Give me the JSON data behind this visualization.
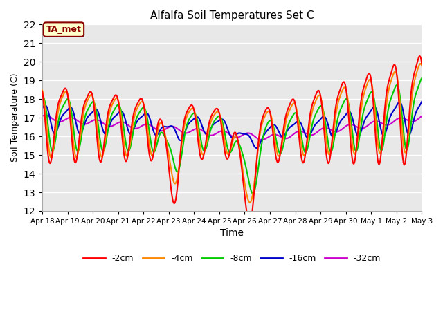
{
  "title": "Alfalfa Soil Temperatures Set C",
  "xlabel": "Time",
  "ylabel": "Soil Temperature (C)",
  "ylim": [
    12.0,
    22.0
  ],
  "yticks": [
    12.0,
    13.0,
    14.0,
    15.0,
    16.0,
    17.0,
    18.0,
    19.0,
    20.0,
    21.0,
    22.0
  ],
  "plot_bg": "#e8e8e8",
  "fig_bg": "#ffffff",
  "annotation_text": "TA_met",
  "annotation_bg": "#ffffcc",
  "annotation_border": "#8B0000",
  "series": {
    "-2cm": {
      "color": "#ff0000",
      "lw": 1.5
    },
    "-4cm": {
      "color": "#ff8800",
      "lw": 1.5
    },
    "-8cm": {
      "color": "#00cc00",
      "lw": 1.5
    },
    "-16cm": {
      "color": "#0000cc",
      "lw": 1.5
    },
    "-32cm": {
      "color": "#cc00cc",
      "lw": 1.5
    }
  },
  "x_dates": [
    "Apr 18",
    "Apr 19",
    "Apr 20",
    "Apr 21",
    "Apr 22",
    "Apr 23",
    "Apr 24",
    "Apr 25",
    "Apr 26",
    "Apr 27",
    "Apr 28",
    "Apr 29",
    "Apr 30",
    "May 1",
    "May 2",
    "May 3"
  ]
}
